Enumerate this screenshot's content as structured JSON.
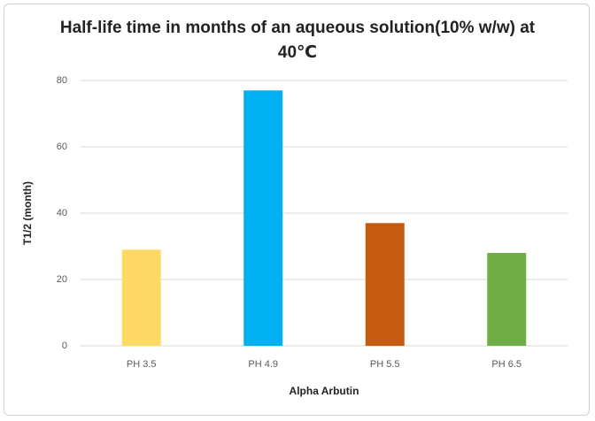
{
  "chart_data": {
    "type": "bar",
    "title": "Half-life time in months of an aqueous solution(10% w/w) at 40℃",
    "x_label": "Alpha Arbutin",
    "y_label": "T1/2 (month)",
    "categories": [
      "PH 3.5",
      "PH 4.9",
      "PH 5.5",
      "PH 6.5"
    ],
    "values": [
      29,
      77,
      37,
      28
    ],
    "colors": [
      "#ffd966",
      "#00b0f0",
      "#c55a11",
      "#70ad47"
    ],
    "ylim": [
      0,
      80
    ],
    "yticks": [
      0,
      20,
      40,
      60,
      80
    ],
    "grid": true
  }
}
